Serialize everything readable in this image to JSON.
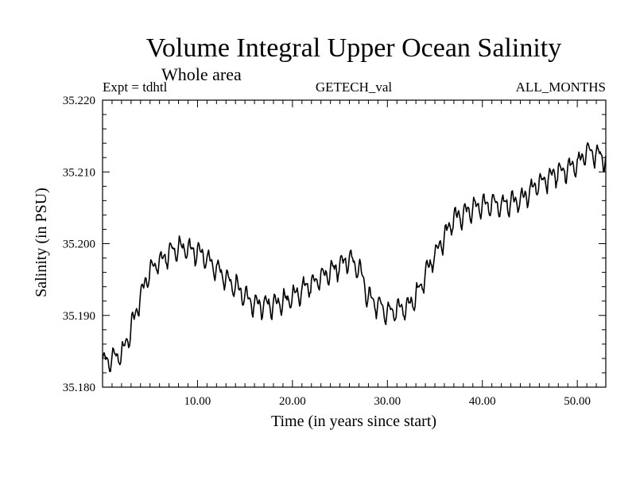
{
  "chart_data": {
    "type": "line",
    "title": "Volume Integral Upper Ocean Salinity",
    "subtitle": "Whole area",
    "header_left": "Expt = tdhtl",
    "header_center": "GETECH_val",
    "header_right": "ALL_MONTHS",
    "xlabel": "Time (in years since start)",
    "ylabel": "Salinity (in PSU)",
    "xlim": [
      0,
      53
    ],
    "ylim": [
      35.18,
      35.22
    ],
    "x_ticks": [
      {
        "value": 10,
        "label": "10.00"
      },
      {
        "value": 20,
        "label": "20.00"
      },
      {
        "value": 30,
        "label": "30.00"
      },
      {
        "value": 40,
        "label": "40.00"
      },
      {
        "value": 50,
        "label": "50.00"
      }
    ],
    "y_ticks": [
      {
        "value": 35.18,
        "label": "35.180"
      },
      {
        "value": 35.19,
        "label": "35.190"
      },
      {
        "value": 35.2,
        "label": "35.200"
      },
      {
        "value": 35.21,
        "label": "35.210"
      },
      {
        "value": 35.22,
        "label": "35.220"
      }
    ],
    "series": [
      {
        "name": "Salinity",
        "color": "#000000",
        "trend_points": [
          [
            0,
            35.1835
          ],
          [
            2,
            35.1845
          ],
          [
            3,
            35.188
          ],
          [
            4,
            35.1925
          ],
          [
            5,
            35.1965
          ],
          [
            7,
            35.1985
          ],
          [
            8,
            35.1995
          ],
          [
            10,
            35.199
          ],
          [
            12,
            35.1965
          ],
          [
            14,
            35.194
          ],
          [
            16,
            35.1915
          ],
          [
            18,
            35.1915
          ],
          [
            20,
            35.1925
          ],
          [
            22,
            35.1945
          ],
          [
            24,
            35.196
          ],
          [
            26,
            35.198
          ],
          [
            27,
            35.1965
          ],
          [
            28,
            35.1925
          ],
          [
            30,
            35.1905
          ],
          [
            32,
            35.191
          ],
          [
            33,
            35.1925
          ],
          [
            35,
            35.1985
          ],
          [
            37,
            35.2035
          ],
          [
            40,
            35.2055
          ],
          [
            42,
            35.2055
          ],
          [
            44,
            35.206
          ],
          [
            46,
            35.2085
          ],
          [
            48,
            35.21
          ],
          [
            50,
            35.211
          ],
          [
            51,
            35.213
          ],
          [
            53,
            35.212
          ]
        ],
        "seasonal_amplitude": 0.0018,
        "samples_per_year": 12
      }
    ]
  }
}
